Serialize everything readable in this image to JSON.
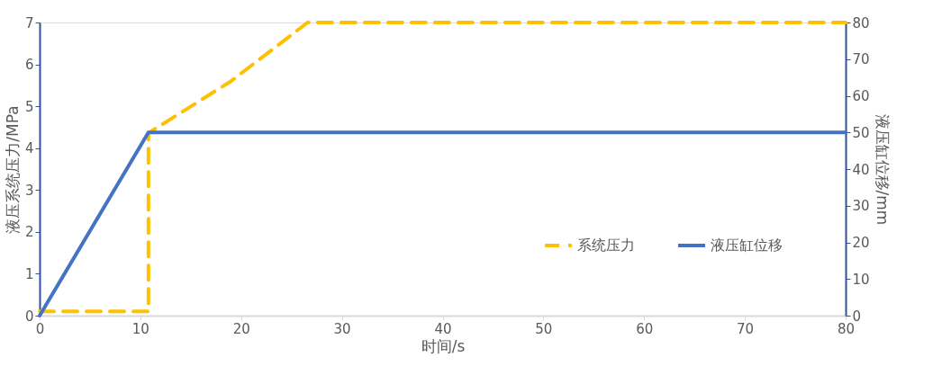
{
  "chart_data": {
    "type": "line",
    "xlabel": "时间/s",
    "ylabel": "液压系统压力/MPa",
    "y2label": "液压缸位移/mm",
    "xlim": [
      0,
      80
    ],
    "xticks": [
      0,
      10,
      20,
      30,
      40,
      50,
      60,
      70,
      80
    ],
    "ylim": [
      0,
      7
    ],
    "yticks": [
      0,
      1,
      2,
      3,
      4,
      5,
      6,
      7
    ],
    "y2lim": [
      0,
      80
    ],
    "y2ticks": [
      0,
      10,
      20,
      30,
      40,
      50,
      60,
      70,
      80
    ],
    "grid": false,
    "legend": "bottom right",
    "series": [
      {
        "name": "系统压力",
        "color": "#ffc000",
        "line_style": "dashed",
        "x": [
          0,
          10.8,
          10.8,
          19,
          26.6,
          80
        ],
        "values": [
          0.1,
          0.1,
          4.36,
          5.6,
          7,
          7
        ]
      },
      {
        "name": "液压缸位移",
        "color": "#4472c4",
        "line_style": "solid",
        "axis": "y2",
        "x": [
          0,
          10.8,
          80
        ],
        "values": [
          0,
          50,
          50
        ]
      }
    ]
  }
}
